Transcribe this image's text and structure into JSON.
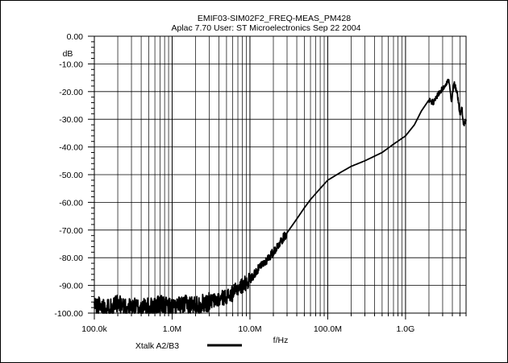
{
  "chart_data": {
    "type": "line",
    "title": "EMIF03-SIM02F2_FREQ-MEAS_PM428",
    "subtitle": "Aplac 7.70 User: ST Microelectronics  Sep 22 2004",
    "xlabel": "f/Hz",
    "ylabel": "dB",
    "x_scale": "log",
    "xlim": [
      100000,
      6000000000
    ],
    "ylim": [
      -100,
      0
    ],
    "grid": true,
    "x_ticks": [
      100000,
      1000000,
      10000000,
      100000000,
      1000000000
    ],
    "x_tick_labels": [
      "100.0k",
      "1.0M",
      "10.0M",
      "100.0M",
      "1.0G"
    ],
    "y_ticks": [
      0,
      -10,
      -20,
      -30,
      -40,
      -50,
      -60,
      -70,
      -80,
      -90,
      -100
    ],
    "y_tick_labels": [
      "0.00",
      "-10.00",
      "-20.00",
      "-30.00",
      "-40.00",
      "-50.00",
      "-60.00",
      "-70.00",
      "-80.00",
      "-90.00",
      "-100.00"
    ],
    "series": [
      {
        "name": "Xtalk A2/B3",
        "color": "#000000",
        "x": [
          100000,
          150000,
          200000,
          300000,
          500000,
          700000,
          1000000,
          1500000,
          2000000,
          3000000,
          4000000,
          5000000,
          6000000,
          7000000,
          8000000,
          10000000,
          12000000,
          15000000,
          20000000,
          25000000,
          30000000,
          40000000,
          50000000,
          60000000,
          80000000,
          100000000,
          150000000,
          200000000,
          300000000,
          500000000,
          700000000,
          1000000000,
          1300000000,
          1600000000,
          2000000000,
          2300000000,
          2600000000,
          3000000000,
          3300000000,
          3600000000,
          3900000000,
          4200000000,
          4600000000,
          5000000000,
          5300000000,
          5600000000,
          6000000000
        ],
        "y": [
          -97,
          -98,
          -97,
          -98,
          -98,
          -97,
          -98,
          -97,
          -97,
          -96,
          -95,
          -94,
          -93,
          -91,
          -90,
          -88,
          -85,
          -82,
          -78,
          -74,
          -71,
          -66,
          -62,
          -59,
          -55,
          -52,
          -49,
          -47,
          -45,
          -42,
          -39,
          -36,
          -32,
          -27,
          -23,
          -24,
          -21,
          -19,
          -17,
          -16,
          -24,
          -17,
          -20,
          -28,
          -26,
          -32,
          -30
        ]
      }
    ]
  }
}
